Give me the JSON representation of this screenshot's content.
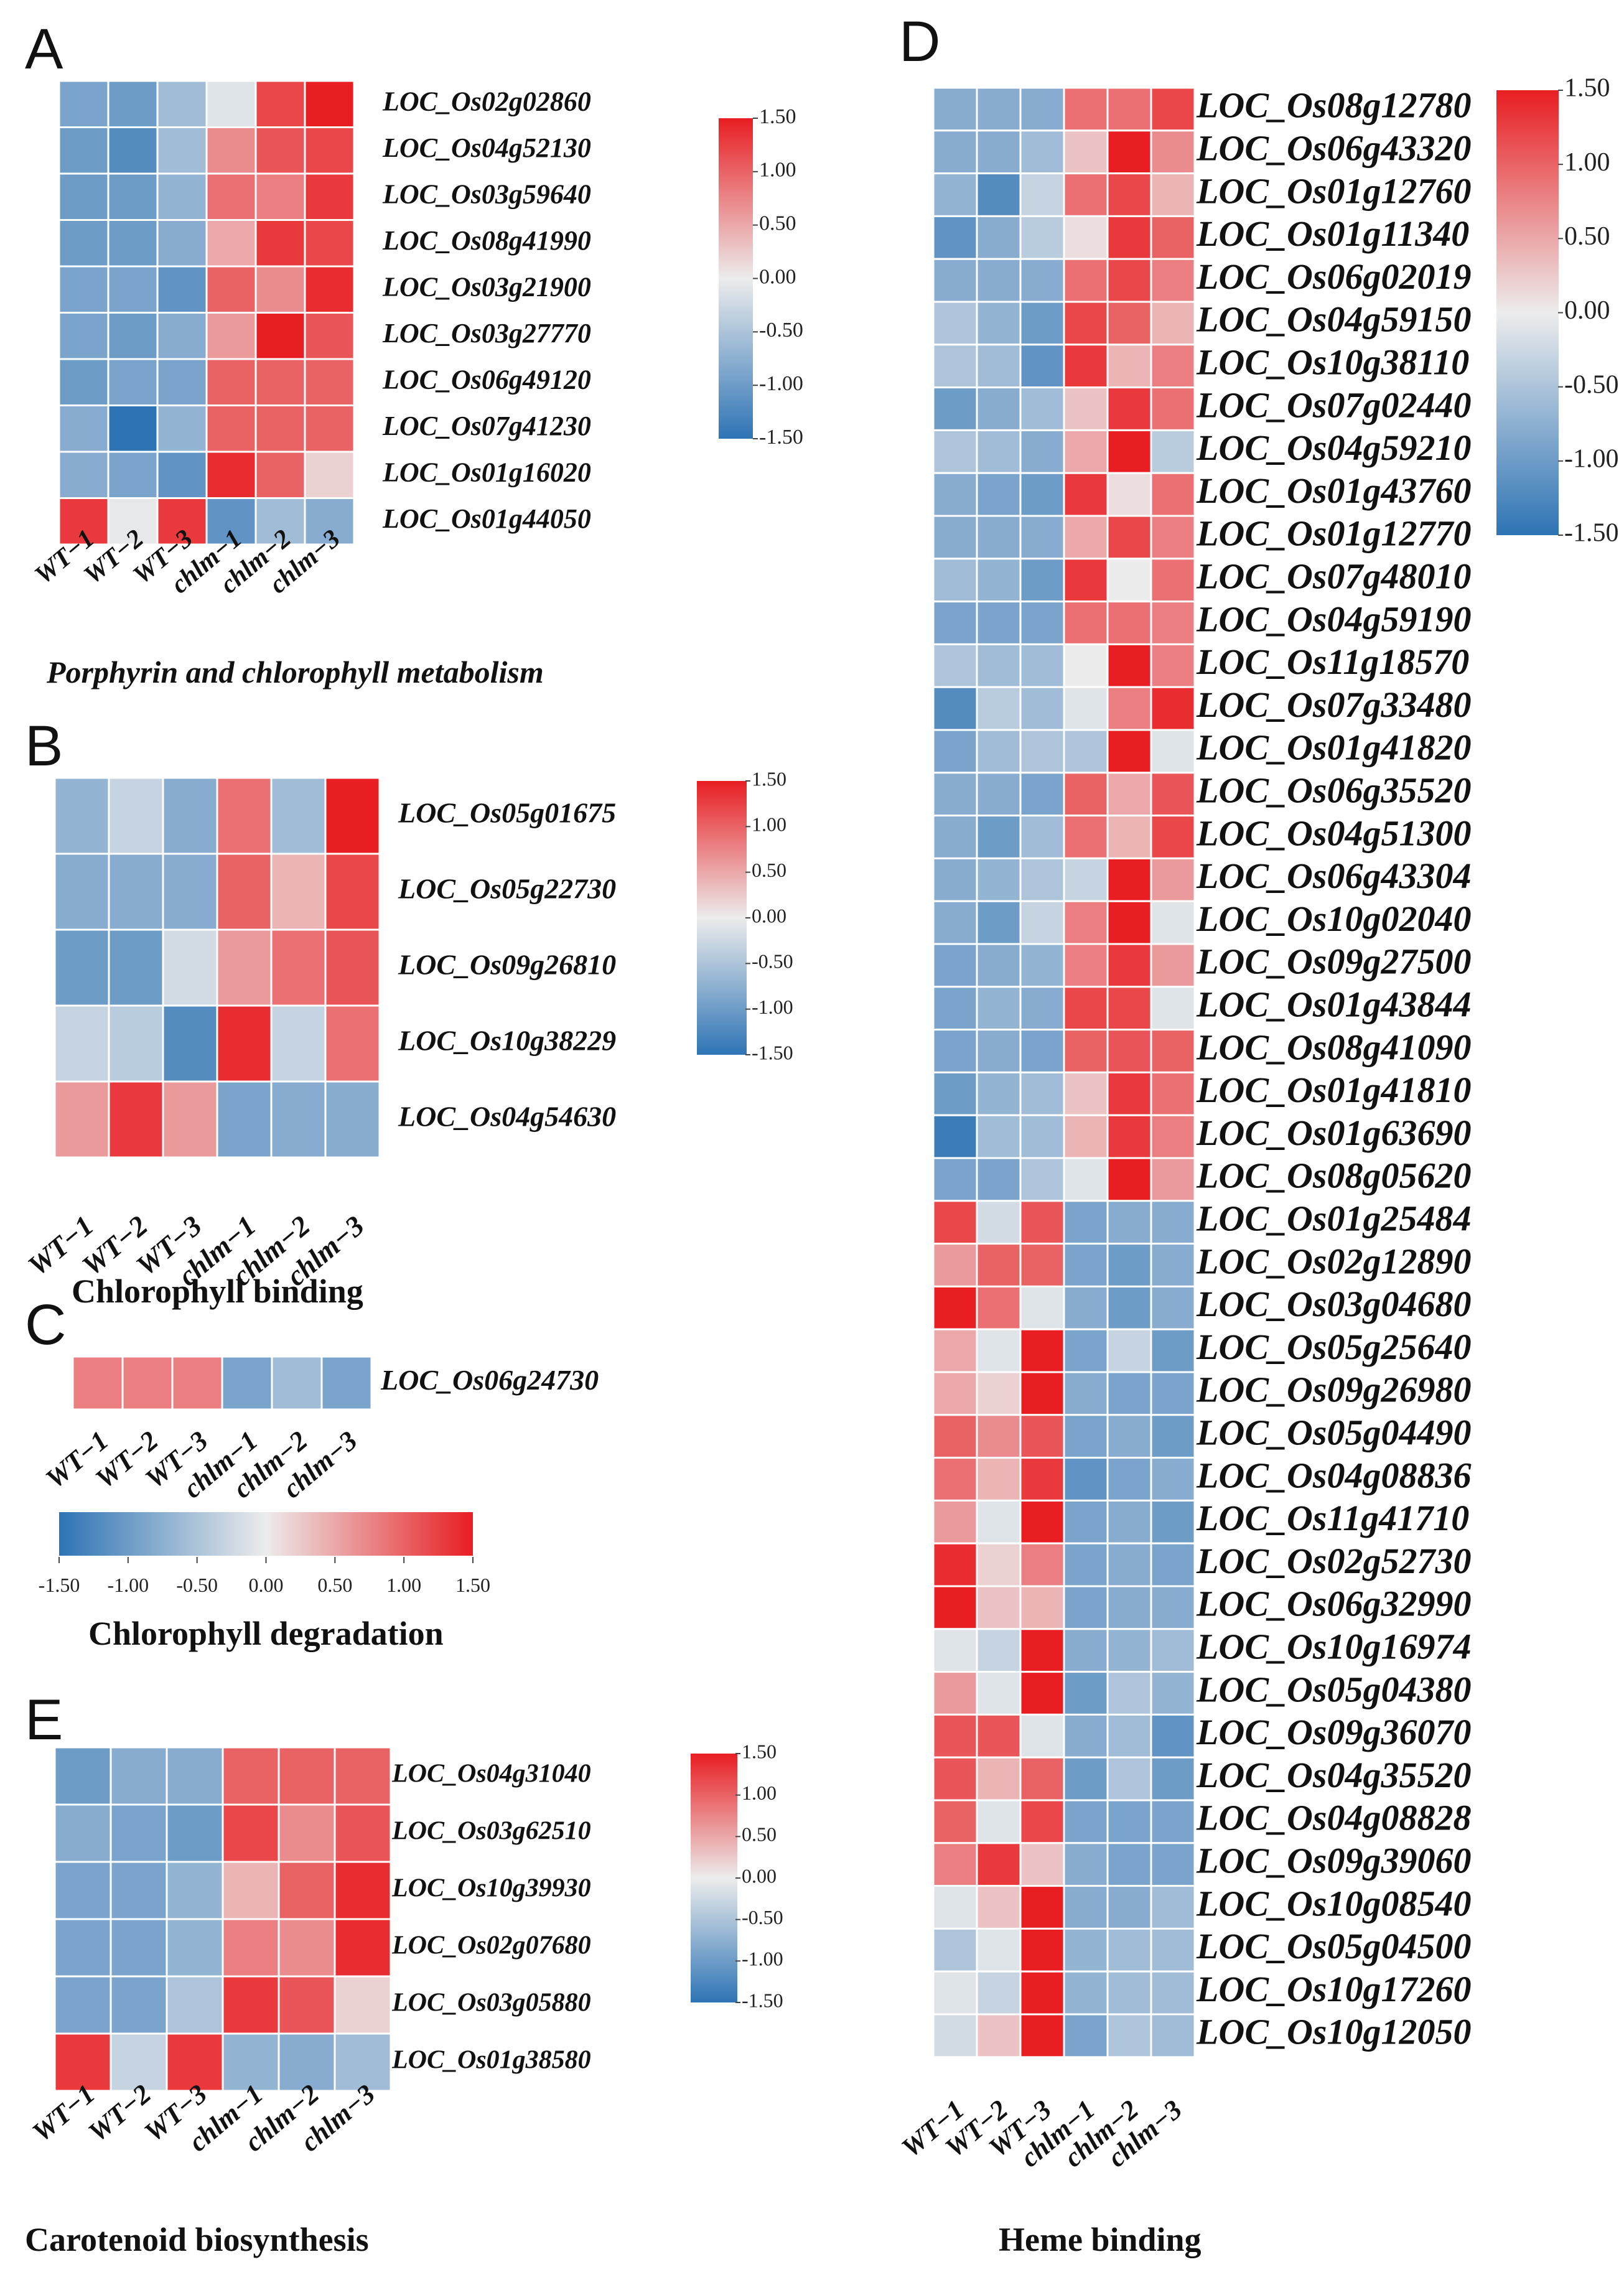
{
  "colors": {
    "low": "#2E74B5",
    "mid": "#ECECEC",
    "high": "#E81E22"
  },
  "chart_data": [
    {
      "panel": "A",
      "type": "heatmap",
      "title": "Porphyrin and chlorophyll metabolism",
      "columns": [
        "WT−1",
        "WT−2",
        "WT−3",
        "chlm−1",
        "chlm−2",
        "chlm−3"
      ],
      "rows": [
        "LOC_Os02g02860",
        "LOC_Os04g52130",
        "LOC_Os03g59640",
        "LOC_Os08g41990",
        "LOC_Os03g21900",
        "LOC_Os03g27770",
        "LOC_Os06g49120",
        "LOC_Os07g41230",
        "LOC_Os01g16020",
        "LOC_Os01g44050"
      ],
      "values": [
        [
          -0.9,
          -1.0,
          -0.6,
          -0.1,
          1.2,
          1.5
        ],
        [
          -1.0,
          -1.2,
          -0.6,
          0.7,
          1.1,
          1.2
        ],
        [
          -1.0,
          -1.0,
          -0.7,
          0.9,
          0.8,
          1.3
        ],
        [
          -1.0,
          -1.0,
          -0.8,
          0.5,
          1.3,
          1.2
        ],
        [
          -0.9,
          -0.9,
          -1.1,
          1.0,
          0.7,
          1.4
        ],
        [
          -0.9,
          -1.0,
          -0.8,
          0.6,
          1.5,
          1.1
        ],
        [
          -1.0,
          -0.9,
          -0.9,
          1.0,
          1.0,
          1.0
        ],
        [
          -0.8,
          -1.5,
          -0.7,
          1.0,
          1.0,
          1.0
        ],
        [
          -0.8,
          -0.9,
          -1.1,
          1.4,
          1.0,
          0.2
        ],
        [
          1.3,
          -0.05,
          1.3,
          -1.1,
          -0.6,
          -0.8
        ]
      ],
      "colorbar": {
        "min": -1.5,
        "max": 1.5,
        "ticks": [
          "1.50",
          "1.00",
          "0.50",
          "0.00",
          "-0.50",
          "-1.00",
          "-1.50"
        ]
      }
    },
    {
      "panel": "B",
      "type": "heatmap",
      "title": "Chlorophyll binding",
      "columns": [
        "WT−1",
        "WT−2",
        "WT−3",
        "chlm−1",
        "chlm−2",
        "chlm−3"
      ],
      "rows": [
        "LOC_Os05g01675",
        "LOC_Os05g22730",
        "LOC_Os09g26810",
        "LOC_Os10g38229",
        "LOC_Os04g54630"
      ],
      "values": [
        [
          -0.7,
          -0.3,
          -0.8,
          0.9,
          -0.6,
          1.5
        ],
        [
          -0.8,
          -0.8,
          -0.8,
          1.0,
          0.4,
          1.2
        ],
        [
          -1.0,
          -1.0,
          -0.2,
          0.6,
          0.9,
          1.1
        ],
        [
          -0.3,
          -0.4,
          -1.2,
          1.4,
          -0.3,
          0.9
        ],
        [
          0.6,
          1.3,
          0.6,
          -0.9,
          -0.8,
          -0.8
        ]
      ],
      "colorbar": {
        "min": -1.5,
        "max": 1.5,
        "ticks": [
          "1.50",
          "1.00",
          "0.50",
          "0.00",
          "-0.50",
          "-1.00",
          "-1.50"
        ]
      }
    },
    {
      "panel": "C",
      "type": "heatmap",
      "title": "Chlorophyll degradation",
      "columns": [
        "WT−1",
        "WT−2",
        "WT−3",
        "chlm−1",
        "chlm−2",
        "chlm−3"
      ],
      "rows": [
        "LOC_Os06g24730"
      ],
      "values": [
        [
          0.8,
          0.8,
          0.8,
          -0.9,
          -0.6,
          -0.9
        ]
      ],
      "colorbar": {
        "min": -1.5,
        "max": 1.5,
        "ticks": [
          "-1.50",
          "-1.00",
          "-0.50",
          "0.00",
          "0.50",
          "1.00",
          "1.50"
        ]
      }
    },
    {
      "panel": "D",
      "type": "heatmap",
      "title": "Heme binding",
      "columns": [
        "WT−1",
        "WT−2",
        "WT−3",
        "chlm−1",
        "chlm−2",
        "chlm−3"
      ],
      "rows": [
        "LOC_Os08g12780",
        "LOC_Os06g43320",
        "LOC_Os01g12760",
        "LOC_Os01g11340",
        "LOC_Os06g02019",
        "LOC_Os04g59150",
        "LOC_Os10g38110",
        "LOC_Os07g02440",
        "LOC_Os04g59210",
        "LOC_Os01g43760",
        "LOC_Os01g12770",
        "LOC_Os07g48010",
        "LOC_Os04g59190",
        "LOC_Os11g18570",
        "LOC_Os07g33480",
        "LOC_Os01g41820",
        "LOC_Os06g35520",
        "LOC_Os04g51300",
        "LOC_Os06g43304",
        "LOC_Os10g02040",
        "LOC_Os09g27500",
        "LOC_Os01g43844",
        "LOC_Os08g41090",
        "LOC_Os01g41810",
        "LOC_Os01g63690",
        "LOC_Os08g05620",
        "LOC_Os01g25484",
        "LOC_Os02g12890",
        "LOC_Os03g04680",
        "LOC_Os05g25640",
        "LOC_Os09g26980",
        "LOC_Os05g04490",
        "LOC_Os04g08836",
        "LOC_Os11g41710",
        "LOC_Os02g52730",
        "LOC_Os06g32990",
        "LOC_Os10g16974",
        "LOC_Os05g04380",
        "LOC_Os09g36070",
        "LOC_Os04g35520",
        "LOC_Os04g08828",
        "LOC_Os09g39060",
        "LOC_Os10g08540",
        "LOC_Os05g04500",
        "LOC_Os10g17260",
        "LOC_Os10g12050"
      ],
      "values": [
        [
          -0.8,
          -0.8,
          -0.8,
          0.9,
          0.9,
          1.2
        ],
        [
          -0.8,
          -0.8,
          -0.6,
          0.3,
          1.5,
          0.7
        ],
        [
          -0.7,
          -1.2,
          -0.3,
          0.9,
          1.2,
          0.4
        ],
        [
          -1.1,
          -0.8,
          -0.4,
          0.1,
          1.3,
          1.0
        ],
        [
          -0.8,
          -0.8,
          -0.8,
          0.9,
          1.2,
          0.8
        ],
        [
          -0.5,
          -0.7,
          -1.0,
          1.2,
          1.0,
          0.4
        ],
        [
          -0.5,
          -0.6,
          -1.1,
          1.3,
          0.4,
          0.8
        ],
        [
          -1.0,
          -0.8,
          -0.6,
          0.3,
          1.3,
          0.9
        ],
        [
          -0.5,
          -0.6,
          -0.8,
          0.5,
          1.5,
          -0.4
        ],
        [
          -0.8,
          -0.9,
          -1.0,
          1.3,
          0.1,
          0.9
        ],
        [
          -0.8,
          -0.8,
          -0.8,
          0.5,
          1.2,
          0.8
        ],
        [
          -0.6,
          -0.7,
          -1.0,
          1.3,
          0.0,
          0.9
        ],
        [
          -0.9,
          -0.9,
          -0.9,
          0.9,
          0.9,
          0.8
        ],
        [
          -0.5,
          -0.6,
          -0.6,
          0.0,
          1.5,
          0.8
        ],
        [
          -1.2,
          -0.4,
          -0.6,
          -0.1,
          0.8,
          1.4
        ],
        [
          -0.9,
          -0.6,
          -0.5,
          -0.5,
          1.5,
          -0.1
        ],
        [
          -0.8,
          -0.8,
          -0.9,
          1.0,
          0.5,
          1.1
        ],
        [
          -0.8,
          -1.0,
          -0.6,
          0.9,
          0.4,
          1.2
        ],
        [
          -0.8,
          -0.7,
          -0.5,
          -0.3,
          1.5,
          0.6
        ],
        [
          -0.8,
          -1.0,
          -0.3,
          0.8,
          1.5,
          -0.1
        ],
        [
          -0.9,
          -0.8,
          -0.7,
          0.8,
          1.3,
          0.6
        ],
        [
          -0.9,
          -0.7,
          -0.8,
          1.2,
          1.2,
          -0.1
        ],
        [
          -0.9,
          -0.8,
          -0.9,
          1.0,
          1.1,
          1.0
        ],
        [
          -1.0,
          -0.7,
          -0.6,
          0.3,
          1.3,
          0.9
        ],
        [
          -1.4,
          -0.6,
          -0.6,
          0.4,
          1.3,
          0.8
        ],
        [
          -0.9,
          -0.9,
          -0.5,
          -0.1,
          1.5,
          0.6
        ],
        [
          1.2,
          -0.2,
          1.1,
          -0.9,
          -0.8,
          -0.8
        ],
        [
          0.6,
          1.0,
          1.0,
          -0.9,
          -1.0,
          -0.8
        ],
        [
          1.5,
          0.9,
          -0.1,
          -0.8,
          -1.0,
          -0.8
        ],
        [
          0.5,
          -0.1,
          1.5,
          -0.9,
          -0.3,
          -1.0
        ],
        [
          0.5,
          0.2,
          1.5,
          -0.8,
          -0.9,
          -0.9
        ],
        [
          1.0,
          0.7,
          1.1,
          -0.9,
          -0.8,
          -1.0
        ],
        [
          0.9,
          0.4,
          1.3,
          -1.1,
          -0.9,
          -0.8
        ],
        [
          0.6,
          -0.1,
          1.5,
          -0.9,
          -0.8,
          -1.0
        ],
        [
          1.4,
          0.2,
          0.8,
          -0.9,
          -0.8,
          -0.9
        ],
        [
          1.5,
          0.3,
          0.4,
          -0.9,
          -0.8,
          -0.8
        ],
        [
          -0.1,
          -0.3,
          1.5,
          -0.8,
          -0.7,
          -0.6
        ],
        [
          0.6,
          -0.1,
          1.5,
          -1.0,
          -0.5,
          -0.7
        ],
        [
          1.1,
          1.1,
          -0.1,
          -0.8,
          -0.6,
          -1.1
        ],
        [
          1.1,
          0.4,
          1.0,
          -1.0,
          -0.5,
          -1.0
        ],
        [
          1.0,
          -0.1,
          1.2,
          -0.9,
          -0.9,
          -0.9
        ],
        [
          0.8,
          1.3,
          0.3,
          -0.8,
          -0.9,
          -0.9
        ],
        [
          -0.1,
          0.3,
          1.5,
          -0.8,
          -0.8,
          -0.6
        ],
        [
          -0.5,
          -0.1,
          1.5,
          -0.7,
          -0.6,
          -0.6
        ],
        [
          -0.1,
          -0.3,
          1.5,
          -0.7,
          -0.6,
          -0.6
        ],
        [
          -0.2,
          0.3,
          1.5,
          -0.9,
          -0.5,
          -0.6
        ]
      ],
      "colorbar": {
        "min": -1.5,
        "max": 1.5,
        "ticks": [
          "1.50",
          "1.00",
          "0.50",
          "0.00",
          "-0.50",
          "-1.00",
          "-1.50"
        ]
      }
    },
    {
      "panel": "E",
      "type": "heatmap",
      "title": "Carotenoid biosynthesis",
      "columns": [
        "WT−1",
        "WT−2",
        "WT−3",
        "chlm−1",
        "chlm−2",
        "chlm−3"
      ],
      "rows": [
        "LOC_Os04g31040",
        "LOC_Os03g62510",
        "LOC_Os10g39930",
        "LOC_Os02g07680",
        "LOC_Os03g05880",
        "LOC_Os01g38580"
      ],
      "values": [
        [
          -1.0,
          -0.8,
          -0.8,
          1.0,
          1.0,
          1.0
        ],
        [
          -0.8,
          -0.9,
          -1.0,
          1.2,
          0.7,
          1.1
        ],
        [
          -0.9,
          -0.9,
          -0.7,
          0.4,
          1.0,
          1.4
        ],
        [
          -0.9,
          -0.9,
          -0.7,
          0.8,
          0.7,
          1.4
        ],
        [
          -0.9,
          -0.9,
          -0.5,
          1.3,
          1.1,
          0.2
        ],
        [
          1.3,
          -0.3,
          1.3,
          -0.7,
          -0.8,
          -0.6
        ]
      ],
      "colorbar": {
        "min": -1.5,
        "max": 1.5,
        "ticks": [
          "1.50",
          "1.00",
          "0.50",
          "0.00",
          "-0.50",
          "-1.00",
          "-1.50"
        ]
      }
    }
  ]
}
